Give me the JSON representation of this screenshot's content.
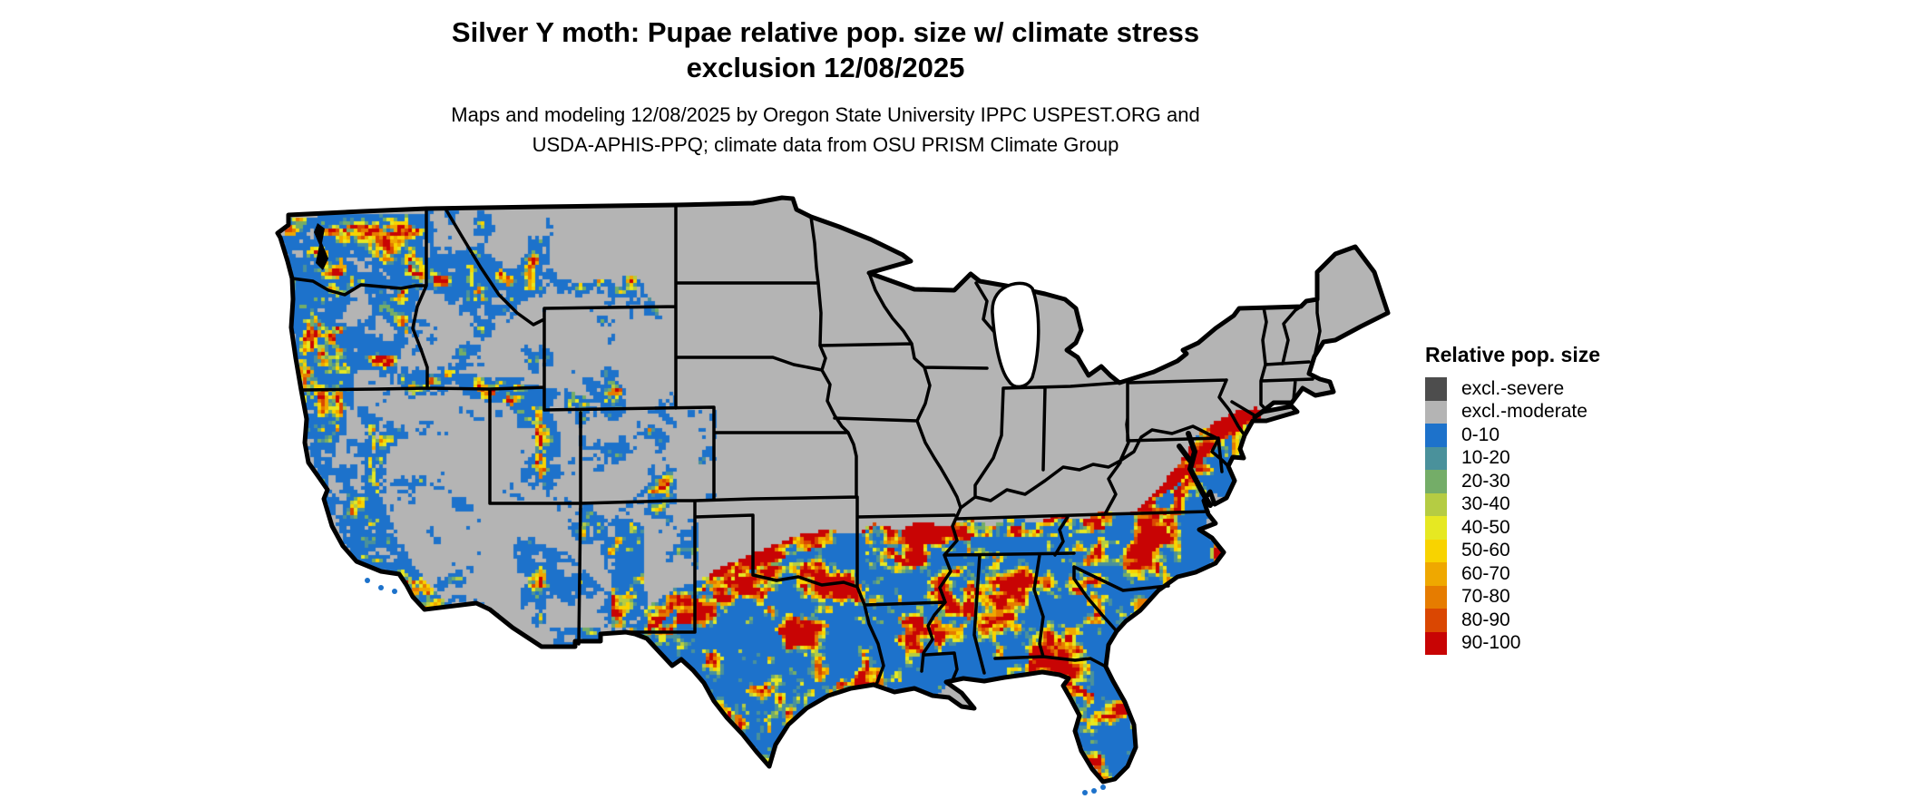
{
  "header": {
    "title_line1": "Silver Y moth: Pupae relative pop. size w/ climate stress",
    "title_line2": "exclusion 12/08/2025",
    "subtitle_line1": "Maps and modeling 12/08/2025 by Oregon State University IPPC USPEST.ORG and",
    "subtitle_line2": "USDA-APHIS-PPQ; climate data from OSU PRISM Climate Group"
  },
  "legend": {
    "title": "Relative pop. size",
    "items": [
      {
        "label": "excl.-severe",
        "color": "#4d4d4d"
      },
      {
        "label": "excl.-moderate",
        "color": "#b4b4b4"
      },
      {
        "label": "0-10",
        "color": "#1d72cb"
      },
      {
        "label": "10-20",
        "color": "#4a919b"
      },
      {
        "label": "20-30",
        "color": "#74ad68"
      },
      {
        "label": "30-40",
        "color": "#b5cc43"
      },
      {
        "label": "40-50",
        "color": "#e6e822"
      },
      {
        "label": "50-60",
        "color": "#f8d300"
      },
      {
        "label": "60-70",
        "color": "#efa800"
      },
      {
        "label": "70-80",
        "color": "#e67c00"
      },
      {
        "label": "80-90",
        "color": "#da4702"
      },
      {
        "label": "90-100",
        "color": "#c80404"
      }
    ]
  },
  "map": {
    "border_color": "#000000",
    "water_color": "#ffffff",
    "background": "#ffffff"
  }
}
